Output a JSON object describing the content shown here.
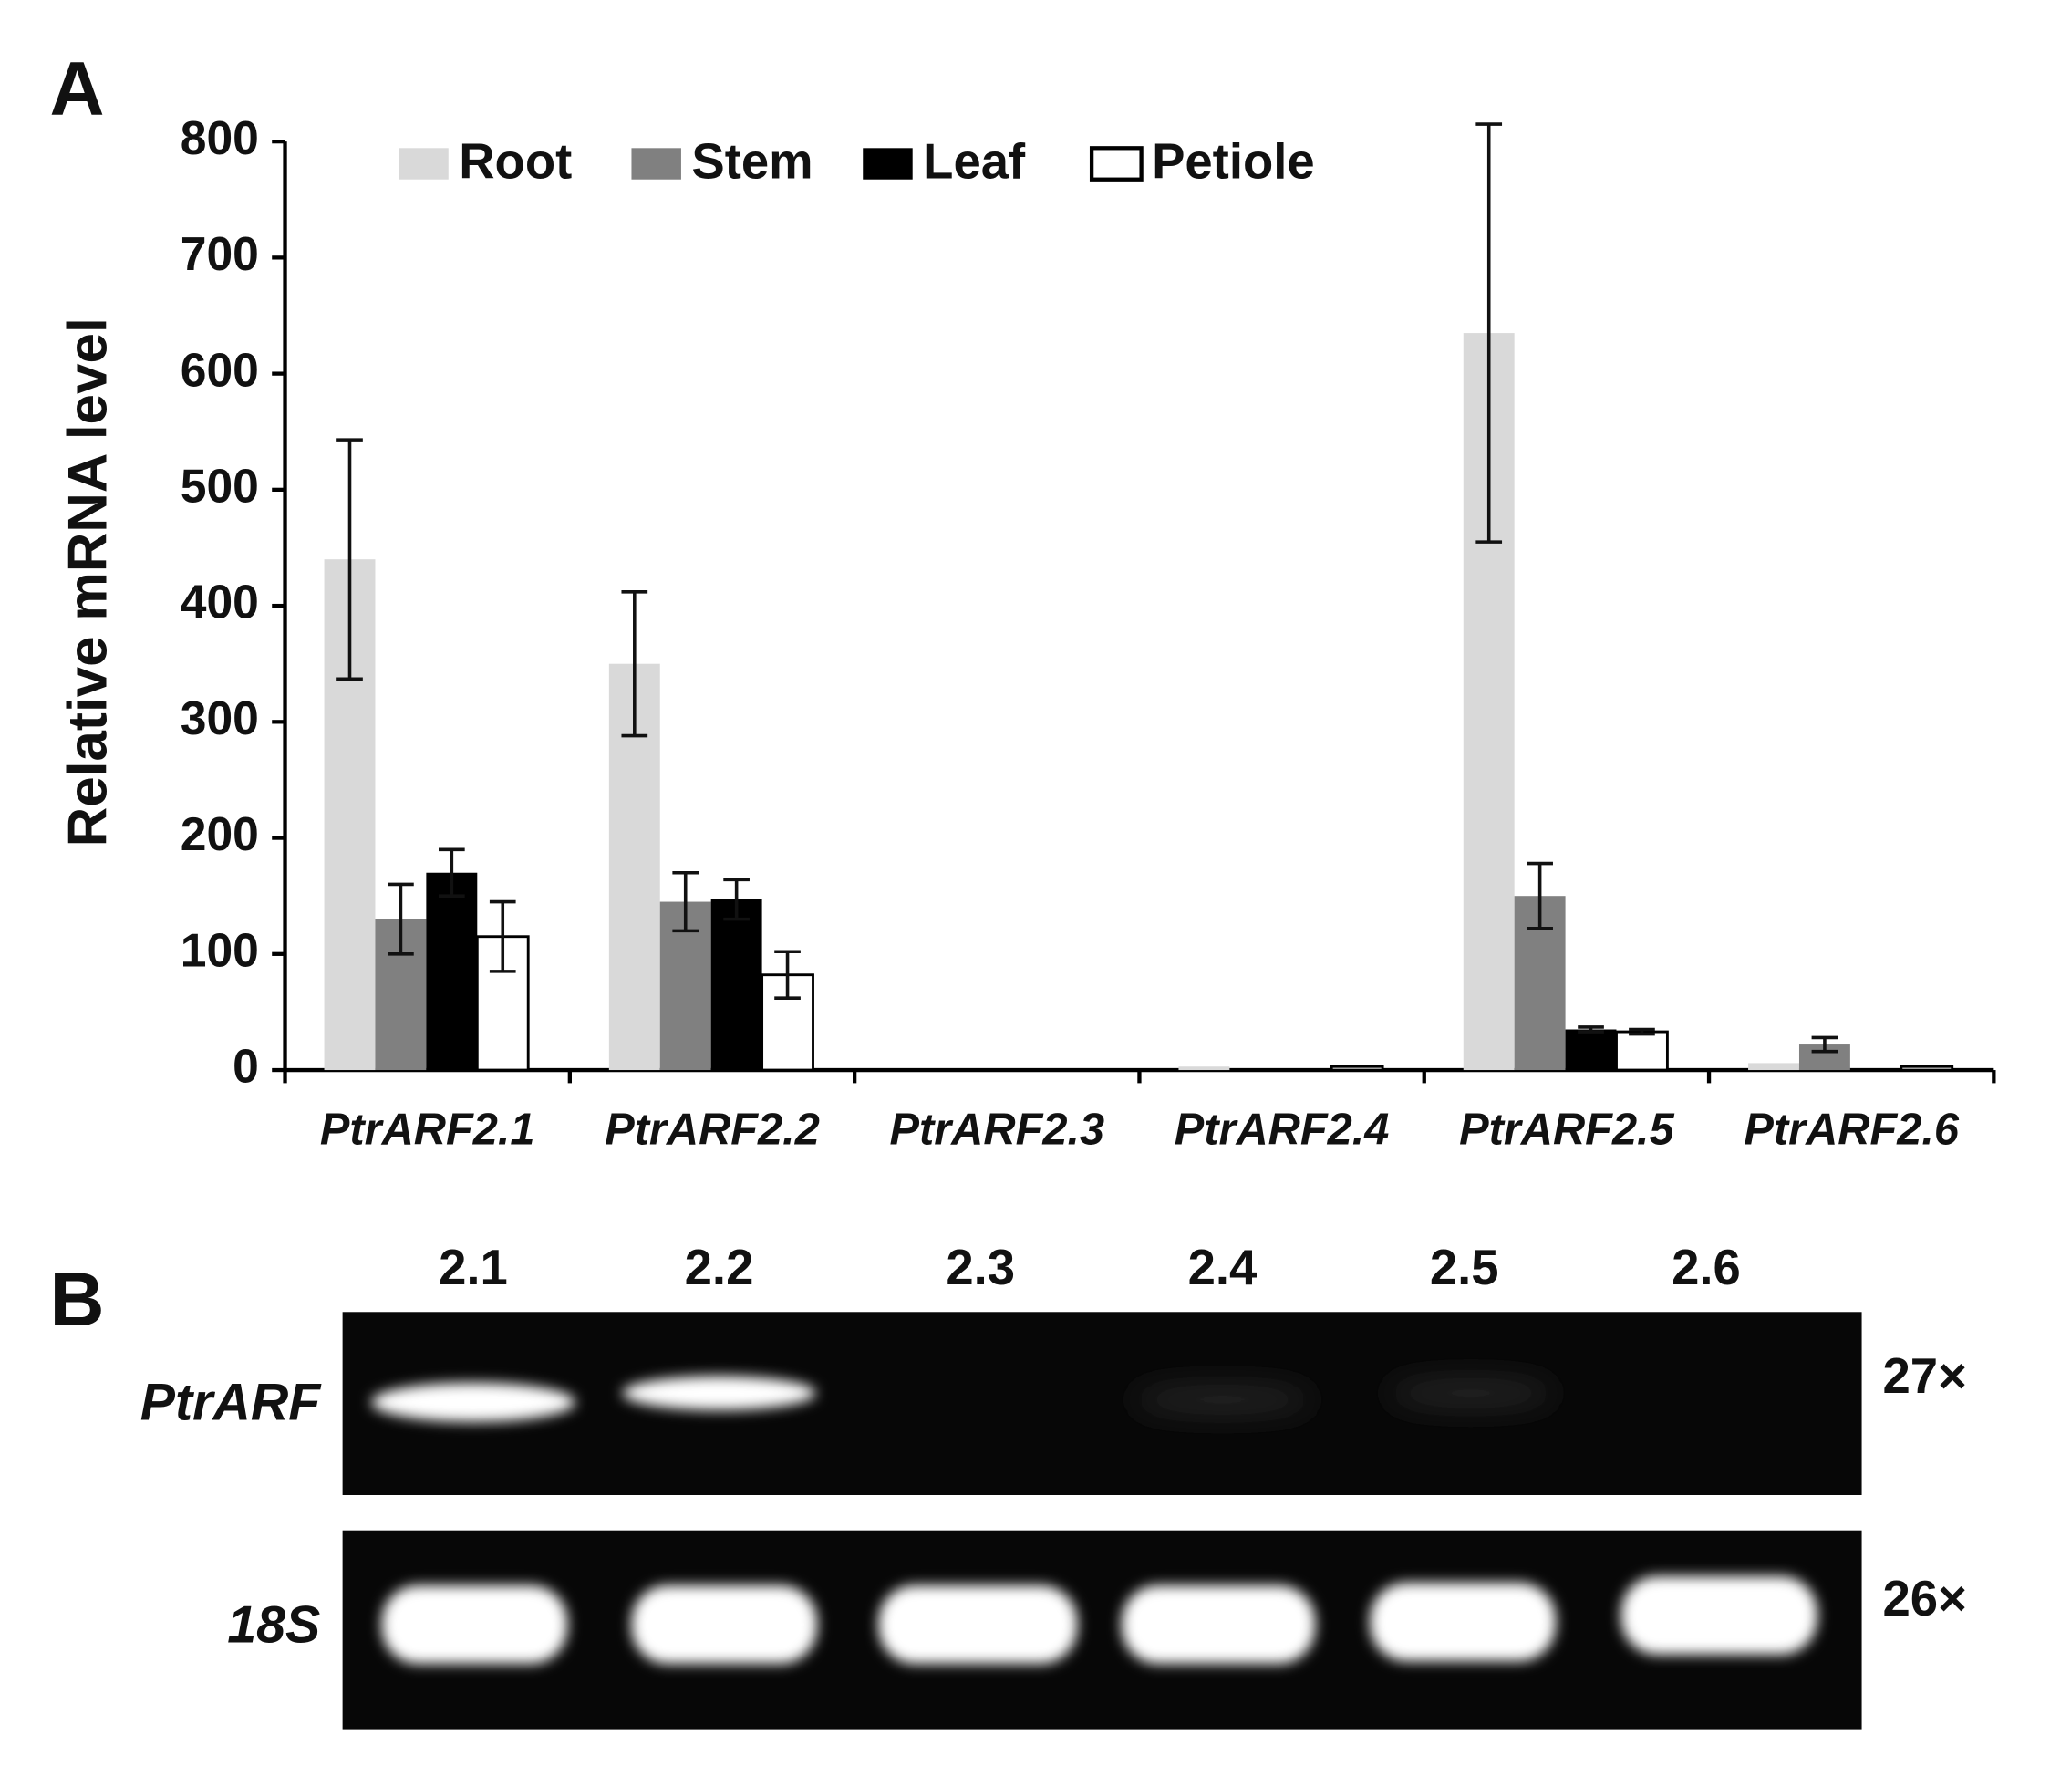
{
  "panel_label_a": "A",
  "chart_data": {
    "type": "bar",
    "ylabel": "Relative mRNA level",
    "categories": [
      "PtrARF2.1",
      "PtrARF2.2",
      "PtrARF2.3",
      "PtrARF2.4",
      "PtrARF2.5",
      "PtrARF2.6"
    ],
    "series": [
      {
        "name": "Root",
        "color": "#d9d9d9",
        "values": [
          440,
          350,
          0,
          3,
          635,
          6
        ],
        "errors": [
          103,
          62,
          null,
          null,
          180,
          null
        ]
      },
      {
        "name": "Stem",
        "color": "#808080",
        "values": [
          130,
          145,
          0,
          0,
          150,
          22
        ],
        "errors": [
          30,
          25,
          null,
          null,
          28,
          6
        ]
      },
      {
        "name": "Leaf",
        "color": "#000000",
        "values": [
          170,
          147,
          0,
          0,
          35,
          0
        ],
        "errors": [
          20,
          17,
          null,
          null,
          2,
          null
        ]
      },
      {
        "name": "Petiole",
        "color": "#ffffff",
        "values": [
          115,
          82,
          0,
          3,
          33,
          3
        ],
        "errors": [
          30,
          20,
          null,
          null,
          2,
          null
        ]
      }
    ],
    "ylim": [
      0,
      800
    ],
    "yticks": [
      0,
      100,
      200,
      300,
      400,
      500,
      600,
      700,
      800
    ],
    "legend": "top"
  },
  "gel": {
    "panel_label": "B",
    "lanes": [
      "2.1",
      "2.2",
      "2.3",
      "2.4",
      "2.5",
      "2.6"
    ],
    "rows": [
      {
        "label": "PtrARF",
        "cycles": "27×"
      },
      {
        "label": "18S",
        "cycles": "26×"
      }
    ]
  }
}
